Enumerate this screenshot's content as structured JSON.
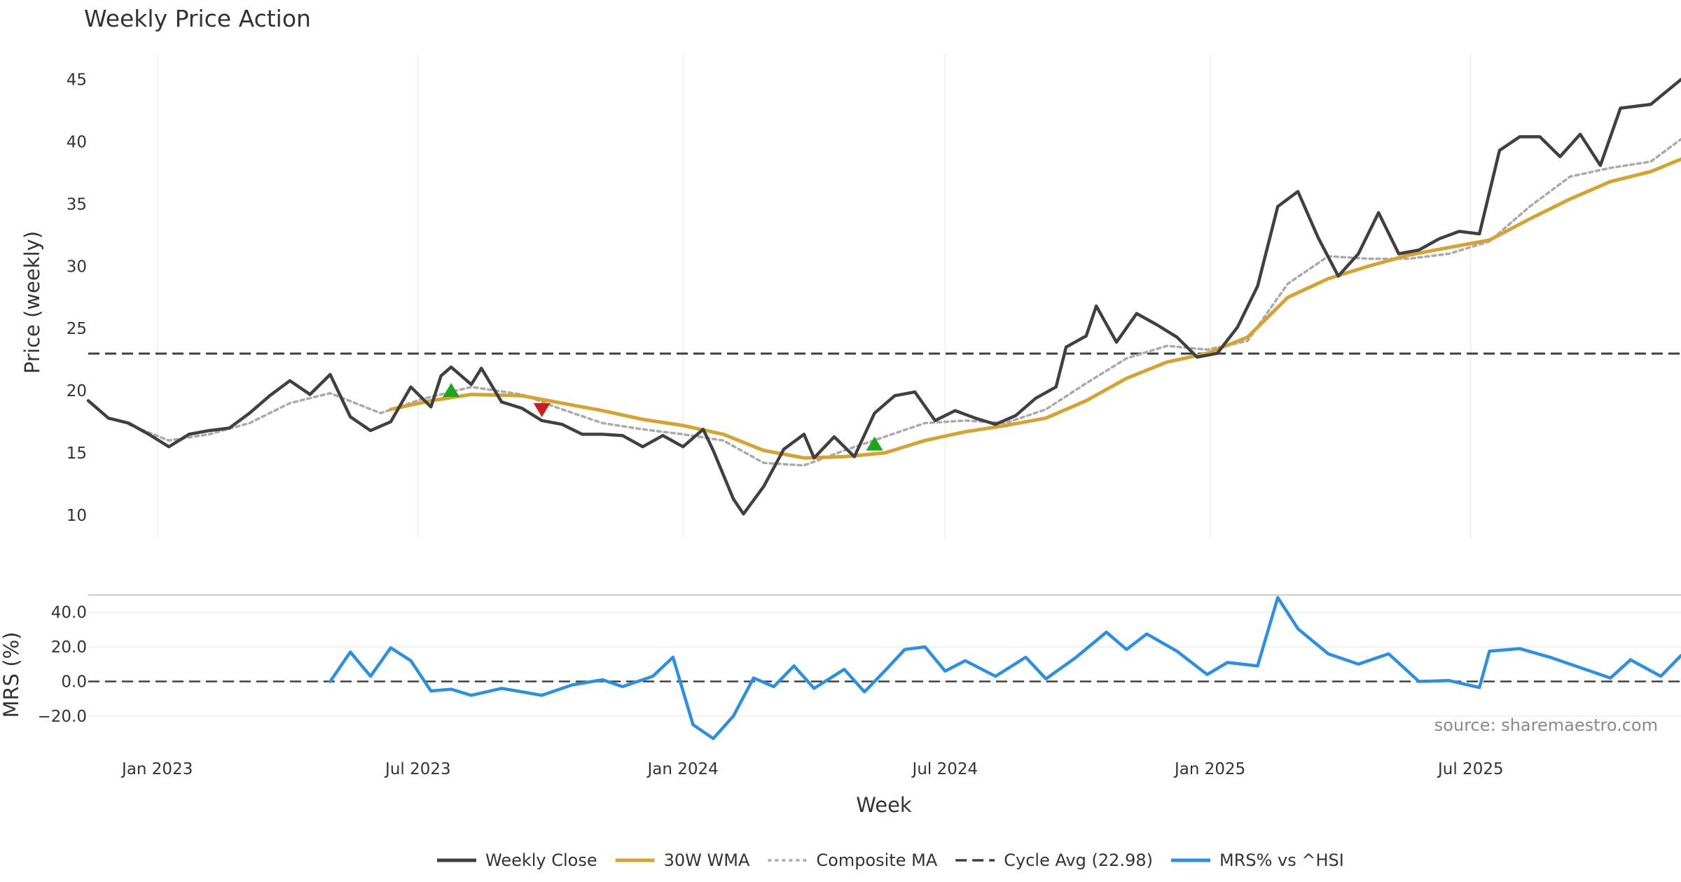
{
  "chart_data": {
    "type": "line",
    "title": "Weekly Price Action",
    "source_note": "source: sharemaestro.com",
    "colors": {
      "weekly_close": "#404040",
      "wma": "#D6A32E",
      "composite": "#AAAAAA",
      "cycle": "#404040",
      "mrs": "#2B8FE3",
      "buy": "#1DA61D",
      "sell": "#CC1F1F"
    },
    "x_axis": {
      "label": "Week",
      "range": [
        "2022-11-14",
        "2025-11-24"
      ],
      "tick_labels": [
        {
          "label": "Jan 2023",
          "date": "2023-01-01"
        },
        {
          "label": "Jul 2023",
          "date": "2023-07-01"
        },
        {
          "label": "Jan 2024",
          "date": "2024-01-01"
        },
        {
          "label": "Jul 2024",
          "date": "2024-07-01"
        },
        {
          "label": "Jan 2025",
          "date": "2025-01-01"
        },
        {
          "label": "Jul 2025",
          "date": "2025-07-01"
        }
      ]
    },
    "price_panel": {
      "ylabel": "Price (weekly)",
      "ylim": [
        8.2,
        47
      ],
      "yticks": [
        "10",
        "15",
        "20",
        "25",
        "30",
        "35",
        "40",
        "45"
      ],
      "grid": "vertical"
    },
    "mrs_panel": {
      "ylabel": "MRS (%)",
      "ylim": [
        -35,
        50
      ],
      "yticks": [
        "40.0",
        "20.0",
        "0.0",
        "−20.0"
      ],
      "zero_line": 0,
      "grid": "horizontal"
    },
    "legend": {
      "placement": "bottom-center",
      "items": [
        {
          "label": "Weekly Close",
          "style": "solid",
          "color": "#404040"
        },
        {
          "label": "30W WMA",
          "style": "solid",
          "color": "#D6A32E"
        },
        {
          "label": "Composite MA",
          "style": "dotted",
          "color": "#AAAAAA"
        },
        {
          "label": "Cycle Avg (22.98)",
          "style": "dashed",
          "color": "#404040"
        },
        {
          "label": "MRS% vs ^HSI",
          "style": "solid",
          "color": "#2B8FE3"
        }
      ]
    },
    "series": [
      {
        "name": "Weekly Close",
        "points": [
          [
            "2022-11-14",
            19.2
          ],
          [
            "2022-11-28",
            17.8
          ],
          [
            "2022-12-12",
            17.4
          ],
          [
            "2022-12-26",
            16.5
          ],
          [
            "2023-01-09",
            15.5
          ],
          [
            "2023-01-23",
            16.5
          ],
          [
            "2023-02-06",
            16.8
          ],
          [
            "2023-02-20",
            17.0
          ],
          [
            "2023-03-06",
            18.2
          ],
          [
            "2023-03-20",
            19.6
          ],
          [
            "2023-04-03",
            20.8
          ],
          [
            "2023-04-17",
            19.7
          ],
          [
            "2023-05-01",
            21.3
          ],
          [
            "2023-05-15",
            17.9
          ],
          [
            "2023-05-29",
            16.8
          ],
          [
            "2023-06-12",
            17.5
          ],
          [
            "2023-06-26",
            20.3
          ],
          [
            "2023-07-10",
            18.7
          ],
          [
            "2023-07-17",
            21.2
          ],
          [
            "2023-07-24",
            21.9
          ],
          [
            "2023-08-07",
            20.5
          ],
          [
            "2023-08-14",
            21.8
          ],
          [
            "2023-08-28",
            19.1
          ],
          [
            "2023-09-11",
            18.6
          ],
          [
            "2023-09-25",
            17.6
          ],
          [
            "2023-10-09",
            17.3
          ],
          [
            "2023-10-23",
            16.5
          ],
          [
            "2023-11-06",
            16.5
          ],
          [
            "2023-11-20",
            16.4
          ],
          [
            "2023-12-04",
            15.5
          ],
          [
            "2023-12-18",
            16.4
          ],
          [
            "2024-01-01",
            15.5
          ],
          [
            "2024-01-15",
            16.9
          ],
          [
            "2024-01-22",
            15.2
          ],
          [
            "2024-02-05",
            11.3
          ],
          [
            "2024-02-12",
            10.1
          ],
          [
            "2024-02-26",
            12.3
          ],
          [
            "2024-03-11",
            15.3
          ],
          [
            "2024-03-25",
            16.5
          ],
          [
            "2024-04-01",
            14.6
          ],
          [
            "2024-04-15",
            16.3
          ],
          [
            "2024-04-29",
            14.7
          ],
          [
            "2024-05-13",
            18.2
          ],
          [
            "2024-05-27",
            19.6
          ],
          [
            "2024-06-10",
            19.9
          ],
          [
            "2024-06-24",
            17.6
          ],
          [
            "2024-07-08",
            18.4
          ],
          [
            "2024-07-22",
            17.8
          ],
          [
            "2024-08-05",
            17.3
          ],
          [
            "2024-08-19",
            18.0
          ],
          [
            "2024-09-02",
            19.4
          ],
          [
            "2024-09-16",
            20.3
          ],
          [
            "2024-09-23",
            23.5
          ],
          [
            "2024-10-07",
            24.4
          ],
          [
            "2024-10-14",
            26.8
          ],
          [
            "2024-10-28",
            23.9
          ],
          [
            "2024-11-11",
            26.2
          ],
          [
            "2024-11-25",
            25.3
          ],
          [
            "2024-12-09",
            24.3
          ],
          [
            "2024-12-23",
            22.7
          ],
          [
            "2025-01-06",
            23.0
          ],
          [
            "2025-01-20",
            25.1
          ],
          [
            "2025-02-03",
            28.4
          ],
          [
            "2025-02-17",
            34.8
          ],
          [
            "2025-03-03",
            36.0
          ],
          [
            "2025-03-17",
            32.3
          ],
          [
            "2025-03-31",
            29.2
          ],
          [
            "2025-04-14",
            31.0
          ],
          [
            "2025-04-28",
            34.3
          ],
          [
            "2025-05-12",
            31.0
          ],
          [
            "2025-05-26",
            31.3
          ],
          [
            "2025-06-09",
            32.2
          ],
          [
            "2025-06-23",
            32.8
          ],
          [
            "2025-07-07",
            32.6
          ],
          [
            "2025-07-21",
            39.3
          ],
          [
            "2025-08-04",
            40.4
          ],
          [
            "2025-08-18",
            40.4
          ],
          [
            "2025-09-01",
            38.8
          ],
          [
            "2025-09-15",
            40.6
          ],
          [
            "2025-09-29",
            38.1
          ],
          [
            "2025-10-13",
            42.7
          ],
          [
            "2025-11-03",
            43.0
          ],
          [
            "2025-11-24",
            45.0
          ]
        ]
      },
      {
        "name": "30W WMA",
        "points": [
          [
            "2023-06-12",
            18.5
          ],
          [
            "2023-07-10",
            19.2
          ],
          [
            "2023-08-07",
            19.7
          ],
          [
            "2023-09-11",
            19.6
          ],
          [
            "2023-10-09",
            19.0
          ],
          [
            "2023-11-06",
            18.4
          ],
          [
            "2023-12-04",
            17.7
          ],
          [
            "2024-01-01",
            17.2
          ],
          [
            "2024-01-29",
            16.5
          ],
          [
            "2024-02-26",
            15.2
          ],
          [
            "2024-03-25",
            14.6
          ],
          [
            "2024-04-22",
            14.7
          ],
          [
            "2024-05-20",
            15.0
          ],
          [
            "2024-06-17",
            16.0
          ],
          [
            "2024-07-15",
            16.7
          ],
          [
            "2024-08-12",
            17.2
          ],
          [
            "2024-09-09",
            17.8
          ],
          [
            "2024-10-07",
            19.2
          ],
          [
            "2024-11-04",
            21.0
          ],
          [
            "2024-12-02",
            22.3
          ],
          [
            "2024-12-30",
            23.0
          ],
          [
            "2025-01-27",
            24.3
          ],
          [
            "2025-02-24",
            27.5
          ],
          [
            "2025-03-24",
            29.0
          ],
          [
            "2025-04-21",
            30.0
          ],
          [
            "2025-05-19",
            30.9
          ],
          [
            "2025-06-16",
            31.5
          ],
          [
            "2025-07-14",
            32.1
          ],
          [
            "2025-08-11",
            33.8
          ],
          [
            "2025-09-08",
            35.4
          ],
          [
            "2025-10-06",
            36.8
          ],
          [
            "2025-11-03",
            37.6
          ],
          [
            "2025-11-24",
            38.6
          ]
        ]
      },
      {
        "name": "Composite MA",
        "points": [
          [
            "2022-12-12",
            17.3
          ],
          [
            "2023-01-09",
            16.0
          ],
          [
            "2023-02-06",
            16.5
          ],
          [
            "2023-03-06",
            17.4
          ],
          [
            "2023-04-03",
            19.0
          ],
          [
            "2023-05-01",
            19.8
          ],
          [
            "2023-06-05",
            18.2
          ],
          [
            "2023-07-03",
            19.3
          ],
          [
            "2023-08-07",
            20.3
          ],
          [
            "2023-09-11",
            19.7
          ],
          [
            "2023-10-09",
            18.5
          ],
          [
            "2023-11-06",
            17.4
          ],
          [
            "2023-12-04",
            16.9
          ],
          [
            "2024-01-01",
            16.5
          ],
          [
            "2024-01-29",
            16.0
          ],
          [
            "2024-02-26",
            14.2
          ],
          [
            "2024-03-25",
            14.0
          ],
          [
            "2024-04-22",
            15.2
          ],
          [
            "2024-05-20",
            16.3
          ],
          [
            "2024-06-17",
            17.4
          ],
          [
            "2024-07-15",
            17.6
          ],
          [
            "2024-08-12",
            17.4
          ],
          [
            "2024-09-09",
            18.5
          ],
          [
            "2024-10-07",
            20.6
          ],
          [
            "2024-11-04",
            22.6
          ],
          [
            "2024-12-02",
            23.6
          ],
          [
            "2024-12-30",
            23.3
          ],
          [
            "2025-01-27",
            24.0
          ],
          [
            "2025-02-24",
            28.6
          ],
          [
            "2025-03-24",
            30.8
          ],
          [
            "2025-04-21",
            30.6
          ],
          [
            "2025-05-19",
            30.6
          ],
          [
            "2025-06-16",
            31.0
          ],
          [
            "2025-07-14",
            32.0
          ],
          [
            "2025-08-11",
            34.8
          ],
          [
            "2025-09-08",
            37.2
          ],
          [
            "2025-10-06",
            37.9
          ],
          [
            "2025-11-03",
            38.4
          ],
          [
            "2025-11-24",
            40.2
          ]
        ]
      },
      {
        "name": "MRS% vs ^HSI",
        "points": [
          [
            "2023-05-01",
            0.0
          ],
          [
            "2023-05-15",
            17.0
          ],
          [
            "2023-05-29",
            3.0
          ],
          [
            "2023-06-12",
            19.5
          ],
          [
            "2023-06-26",
            12.0
          ],
          [
            "2023-07-10",
            -5.5
          ],
          [
            "2023-07-24",
            -4.5
          ],
          [
            "2023-08-07",
            -8.0
          ],
          [
            "2023-08-28",
            -4.0
          ],
          [
            "2023-09-25",
            -8.0
          ],
          [
            "2023-10-16",
            -2.0
          ],
          [
            "2023-11-06",
            1.0
          ],
          [
            "2023-11-20",
            -3.0
          ],
          [
            "2023-12-11",
            3.0
          ],
          [
            "2023-12-25",
            14.0
          ],
          [
            "2024-01-08",
            -25.0
          ],
          [
            "2024-01-22",
            -33.0
          ],
          [
            "2024-02-05",
            -20.0
          ],
          [
            "2024-02-19",
            2.0
          ],
          [
            "2024-03-04",
            -3.0
          ],
          [
            "2024-03-18",
            9.0
          ],
          [
            "2024-04-01",
            -4.0
          ],
          [
            "2024-04-22",
            7.0
          ],
          [
            "2024-05-06",
            -6.0
          ],
          [
            "2024-05-20",
            6.0
          ],
          [
            "2024-06-03",
            18.5
          ],
          [
            "2024-06-17",
            20.0
          ],
          [
            "2024-07-01",
            6.0
          ],
          [
            "2024-07-15",
            12.0
          ],
          [
            "2024-08-05",
            3.0
          ],
          [
            "2024-08-26",
            14.0
          ],
          [
            "2024-09-09",
            1.5
          ],
          [
            "2024-09-30",
            14.0
          ],
          [
            "2024-10-21",
            28.5
          ],
          [
            "2024-11-04",
            18.5
          ],
          [
            "2024-11-18",
            27.5
          ],
          [
            "2024-12-09",
            17.5
          ],
          [
            "2024-12-30",
            4.0
          ],
          [
            "2025-01-13",
            11.0
          ],
          [
            "2025-02-03",
            9.0
          ],
          [
            "2025-02-17",
            48.5
          ],
          [
            "2025-03-03",
            30.5
          ],
          [
            "2025-03-24",
            16.0
          ],
          [
            "2025-04-14",
            10.0
          ],
          [
            "2025-05-05",
            16.0
          ],
          [
            "2025-05-26",
            0.0
          ],
          [
            "2025-06-16",
            0.5
          ],
          [
            "2025-07-07",
            -3.5
          ],
          [
            "2025-07-14",
            17.5
          ],
          [
            "2025-08-04",
            19.0
          ],
          [
            "2025-08-25",
            14.0
          ],
          [
            "2025-09-15",
            8.0
          ],
          [
            "2025-10-06",
            2.0
          ],
          [
            "2025-10-20",
            12.5
          ],
          [
            "2025-11-10",
            3.0
          ],
          [
            "2025-11-24",
            15.0
          ]
        ]
      }
    ],
    "cycle_avg": 22.98,
    "signals": [
      {
        "type": "buy",
        "date": "2023-07-24",
        "value": 20.0
      },
      {
        "type": "sell",
        "date": "2023-09-25",
        "value": 18.5
      },
      {
        "type": "buy",
        "date": "2024-05-13",
        "value": 15.7
      }
    ]
  }
}
